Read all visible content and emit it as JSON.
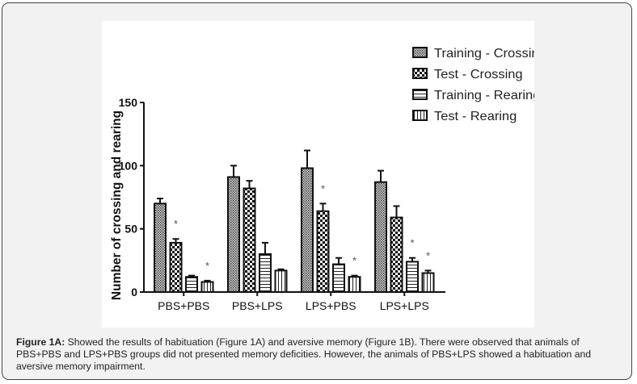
{
  "chart_data": {
    "type": "bar",
    "categories": [
      "PBS+PBS",
      "PBS+LPS",
      "LPS+PBS",
      "LPS+LPS"
    ],
    "series": [
      {
        "name": "Training - Crossing",
        "pattern": "fine-crosshatch",
        "values": [
          70,
          91,
          98,
          87
        ],
        "error": [
          4,
          9,
          14,
          9
        ],
        "significant": [
          false,
          false,
          false,
          false
        ]
      },
      {
        "name": "Test - Crossing",
        "pattern": "checker",
        "values": [
          39,
          82,
          64,
          59
        ],
        "error": [
          3,
          6,
          6,
          9
        ],
        "significant": [
          true,
          false,
          true,
          false
        ]
      },
      {
        "name": "Training - Rearing",
        "pattern": "horizontal-lines",
        "values": [
          12,
          30,
          22,
          24
        ],
        "error": [
          1,
          9,
          5,
          3
        ],
        "significant": [
          false,
          false,
          false,
          true
        ]
      },
      {
        "name": "Test - Rearing",
        "pattern": "vertical-lines",
        "values": [
          8,
          17,
          12,
          15
        ],
        "error": [
          1,
          1,
          1,
          2
        ],
        "significant": [
          true,
          false,
          true,
          true
        ]
      }
    ],
    "significance_marker": "*",
    "ylabel": "Number of crossing and rearing",
    "xlabel": "",
    "ylim": [
      0,
      150
    ],
    "yticks": [
      0,
      50,
      100,
      150
    ],
    "grid": false,
    "legend_position": "top-right"
  },
  "caption": {
    "label": "Figure 1A:",
    "text": " Showed the results of habituation (Figure 1A) and aversive memory (Figure 1B). There were observed that animals of PBS+PBS and LPS+PBS groups did not presented memory deficities. However, the animals of PBS+LPS showed a habituation and aversive memory impairment."
  }
}
